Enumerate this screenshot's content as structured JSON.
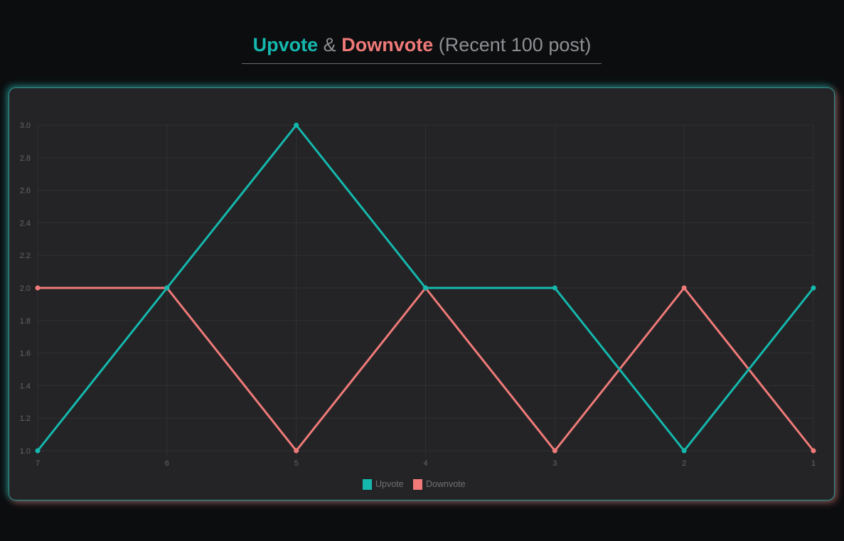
{
  "header": {
    "title_upvote": "Upvote",
    "title_amp": "&",
    "title_downvote": "Downvote",
    "title_suffix": "(Recent 100 post)"
  },
  "colors": {
    "upvote": "#14b8ad",
    "downvote": "#ef7a79",
    "background": "#0c0d0f",
    "card": "#242426",
    "grid": "#303032",
    "tick_text": "#646568",
    "legend_text": "#707174"
  },
  "chart_data": {
    "type": "line",
    "title": "Upvote & Downvote (Recent 100 post)",
    "categories": [
      "7",
      "6",
      "5",
      "4",
      "3",
      "2",
      "1"
    ],
    "series": [
      {
        "name": "Upvote",
        "color": "#14b8ad",
        "values": [
          1,
          2,
          3,
          2,
          2,
          1,
          2
        ]
      },
      {
        "name": "Downvote",
        "color": "#ef7a79",
        "values": [
          2,
          2,
          1,
          2,
          1,
          2,
          1
        ]
      }
    ],
    "ylim": [
      1.0,
      3.0
    ],
    "yticks": [
      "1.0",
      "1.2",
      "1.4",
      "1.6",
      "1.8",
      "2.0",
      "2.2",
      "2.4",
      "2.6",
      "2.8",
      "3.0"
    ],
    "grid": true,
    "legend": "bottom",
    "xlabel": "",
    "ylabel": ""
  }
}
